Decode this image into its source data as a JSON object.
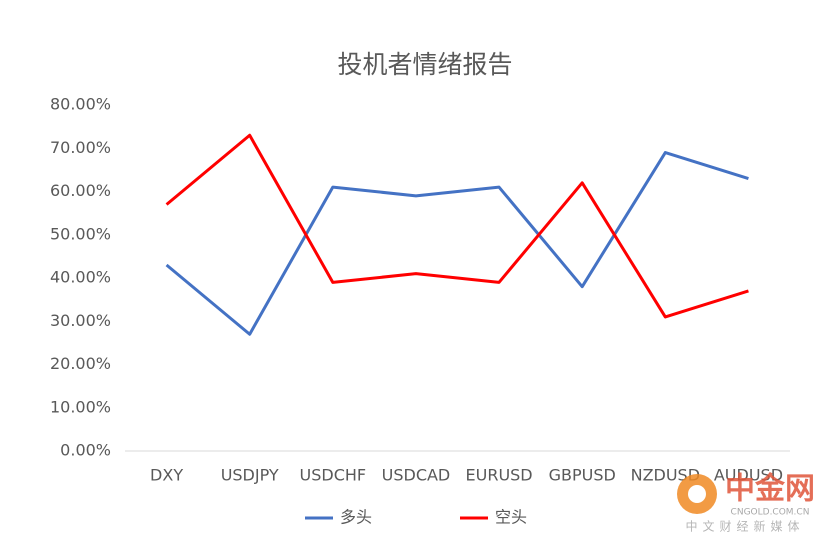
{
  "chart_data": {
    "type": "line",
    "title": "投机者情绪报告",
    "categories": [
      "DXY",
      "USDJPY",
      "USDCHF",
      "USDCAD",
      "EURUSD",
      "GBPUSD",
      "NZDUSD",
      "AUDUSD"
    ],
    "series": [
      {
        "name": "多头",
        "color": "#4472c4",
        "values": [
          43,
          27,
          61,
          59,
          61,
          38,
          69,
          63
        ]
      },
      {
        "name": "空头",
        "color": "#ff0000",
        "values": [
          57,
          73,
          39,
          41,
          39,
          62,
          31,
          37
        ]
      }
    ],
    "ylim": [
      0,
      80
    ],
    "yticks": [
      {
        "value": 0,
        "label": "0.00%"
      },
      {
        "value": 10,
        "label": "10.00%"
      },
      {
        "value": 20,
        "label": "20.00%"
      },
      {
        "value": 30,
        "label": "30.00%"
      },
      {
        "value": 40,
        "label": "40.00%"
      },
      {
        "value": 50,
        "label": "50.00%"
      },
      {
        "value": 60,
        "label": "60.00%"
      },
      {
        "value": 70,
        "label": "70.00%"
      },
      {
        "value": 80,
        "label": "80.00%"
      }
    ],
    "grid": false,
    "legend": "bottom"
  },
  "watermark": {
    "brand": "中金网",
    "domain": "CNGOLD.COM.CN",
    "slogan": "中文财经新媒体"
  }
}
